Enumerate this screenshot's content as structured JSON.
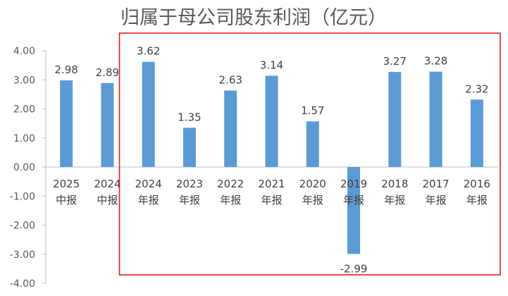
{
  "chart_data": {
    "type": "bar",
    "title": "归属于母公司股东利润（亿元）",
    "xlabel": "",
    "ylabel": "",
    "categories": [
      [
        "2025",
        "中报"
      ],
      [
        "2024",
        "中报"
      ],
      [
        "2024",
        "年报"
      ],
      [
        "2023",
        "年报"
      ],
      [
        "2022",
        "年报"
      ],
      [
        "2021",
        "年报"
      ],
      [
        "2020",
        "年报"
      ],
      [
        "2019",
        "年报"
      ],
      [
        "2018",
        "年报"
      ],
      [
        "2017",
        "年报"
      ],
      [
        "2016",
        "年报"
      ]
    ],
    "values": [
      2.98,
      2.89,
      3.62,
      1.35,
      2.63,
      3.14,
      1.57,
      -2.99,
      3.27,
      3.28,
      2.32
    ],
    "value_labels": [
      "2.98",
      "2.89",
      "3.62",
      "1.35",
      "2.63",
      "3.14",
      "1.57",
      "-2.99",
      "3.27",
      "3.28",
      "2.32"
    ],
    "yticks": [
      "4.00",
      "3.00",
      "2.00",
      "1.00",
      "0.00",
      "-1.00",
      "-2.00",
      "-3.00",
      "-4.00"
    ],
    "ylim": [
      -4,
      4
    ],
    "grid": false,
    "legend": "none",
    "bar_color": "#5b9bd5",
    "highlight_box_color": "#e02020",
    "highlight_from_category_index": 2
  }
}
